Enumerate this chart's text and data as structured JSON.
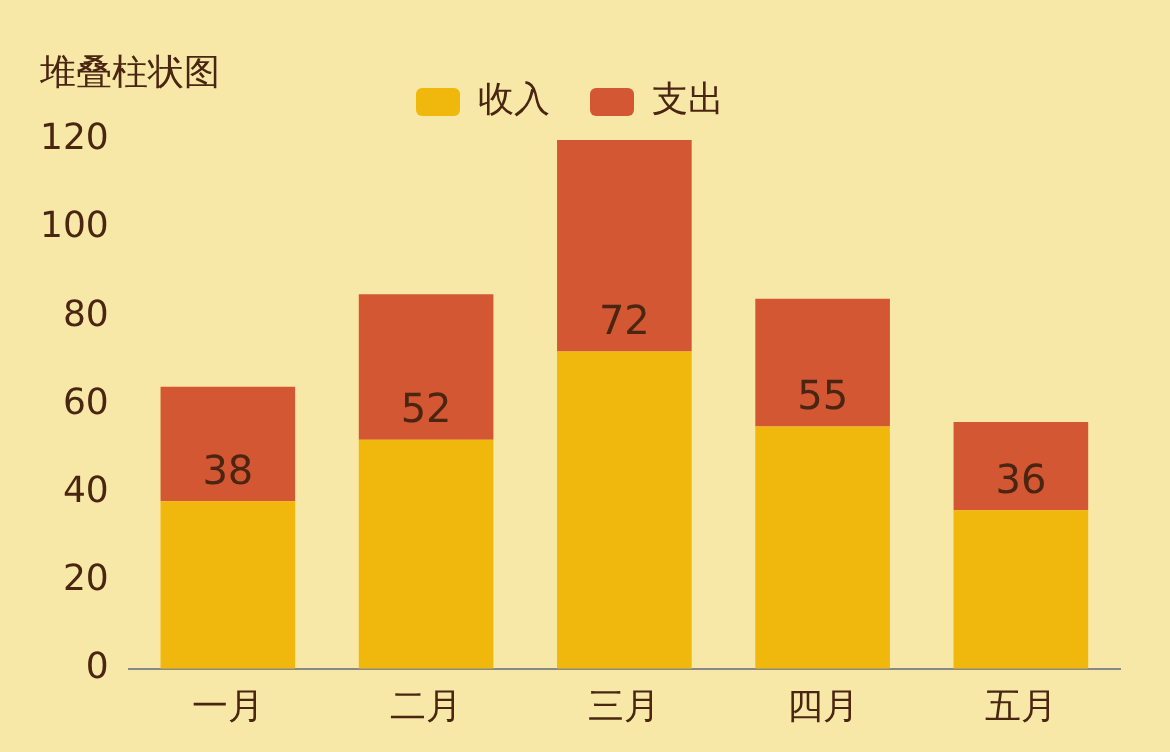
{
  "chart_data": {
    "type": "bar",
    "title": "堆叠柱状图",
    "categories": [
      "一月",
      "二月",
      "三月",
      "四月",
      "五月"
    ],
    "series": [
      {
        "name": "收入",
        "color": "#f0b70c",
        "values": [
          38,
          52,
          72,
          55,
          36
        ],
        "value_labels": [
          "38",
          "52",
          "72",
          "55",
          "36"
        ]
      },
      {
        "name": "支出",
        "color": "#d35732",
        "values": [
          26,
          33,
          48,
          29,
          20
        ]
      }
    ],
    "stacked": true,
    "ylim": [
      0,
      120
    ],
    "yticks": [
      0,
      20,
      40,
      60,
      80,
      100,
      120
    ],
    "grid": false,
    "legend": "top"
  }
}
